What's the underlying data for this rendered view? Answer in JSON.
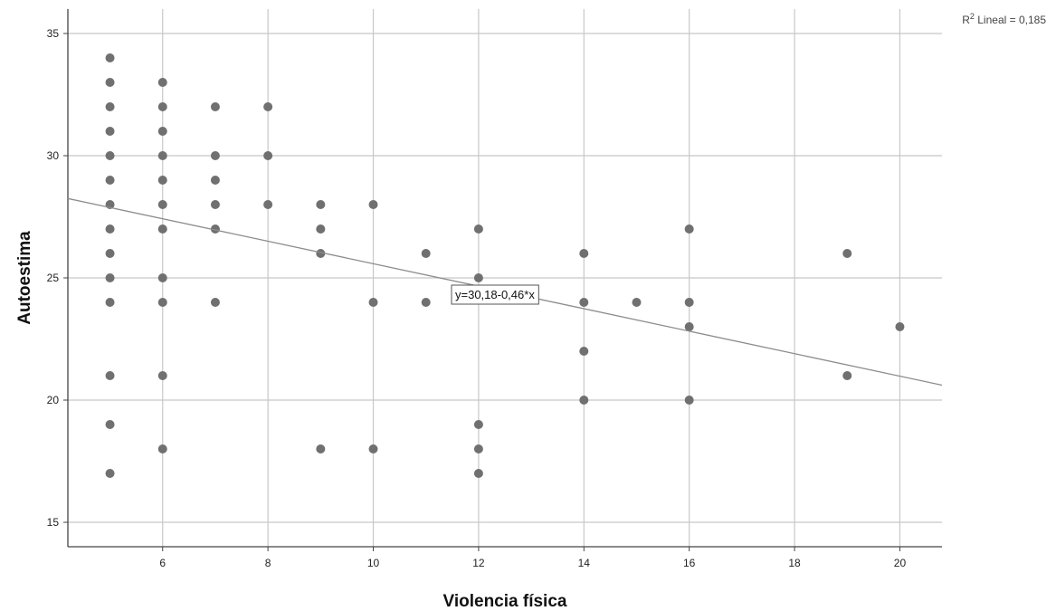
{
  "chart_data": {
    "type": "scatter",
    "title": "",
    "xlabel": "Violencia física",
    "ylabel": "Autoestima",
    "xlim": [
      4.2,
      20.8
    ],
    "ylim": [
      14,
      36
    ],
    "x_ticks": [
      6,
      8,
      10,
      12,
      14,
      16,
      18,
      20
    ],
    "y_ticks": [
      15,
      20,
      25,
      30,
      35
    ],
    "grid": true,
    "colors": {
      "points": "#707070",
      "line": "#8c8c8c",
      "grid": "#c8c8c8",
      "axis": "#444444"
    },
    "points": [
      [
        5,
        34
      ],
      [
        5,
        33
      ],
      [
        5,
        32
      ],
      [
        5,
        31
      ],
      [
        5,
        30
      ],
      [
        5,
        29
      ],
      [
        5,
        28
      ],
      [
        5,
        27
      ],
      [
        5,
        26
      ],
      [
        5,
        25
      ],
      [
        5,
        24
      ],
      [
        5,
        21
      ],
      [
        5,
        19
      ],
      [
        5,
        17
      ],
      [
        6,
        33
      ],
      [
        6,
        32
      ],
      [
        6,
        31
      ],
      [
        6,
        30
      ],
      [
        6,
        29
      ],
      [
        6,
        28
      ],
      [
        6,
        27
      ],
      [
        6,
        25
      ],
      [
        6,
        24
      ],
      [
        6,
        21
      ],
      [
        6,
        18
      ],
      [
        7,
        32
      ],
      [
        7,
        30
      ],
      [
        7,
        29
      ],
      [
        7,
        28
      ],
      [
        7,
        27
      ],
      [
        7,
        24
      ],
      [
        8,
        32
      ],
      [
        8,
        30
      ],
      [
        8,
        28
      ],
      [
        9,
        28
      ],
      [
        9,
        27
      ],
      [
        9,
        26
      ],
      [
        9,
        18
      ],
      [
        10,
        28
      ],
      [
        10,
        24
      ],
      [
        10,
        18
      ],
      [
        11,
        26
      ],
      [
        11,
        24
      ],
      [
        12,
        27
      ],
      [
        12,
        25
      ],
      [
        12,
        19
      ],
      [
        12,
        18
      ],
      [
        12,
        17
      ],
      [
        14,
        26
      ],
      [
        14,
        24
      ],
      [
        14,
        22
      ],
      [
        14,
        20
      ],
      [
        15,
        24
      ],
      [
        16,
        27
      ],
      [
        16,
        24
      ],
      [
        16,
        23
      ],
      [
        16,
        20
      ],
      [
        19,
        26
      ],
      [
        19,
        21
      ],
      [
        20,
        23
      ]
    ],
    "fit_line": {
      "intercept": 30.18,
      "slope": -0.46,
      "equation_label": "y=30,18-0,46*x",
      "r2_label_base": "R",
      "r2_label_sup": "2",
      "r2_label_rest": " Lineal = 0,185"
    }
  }
}
